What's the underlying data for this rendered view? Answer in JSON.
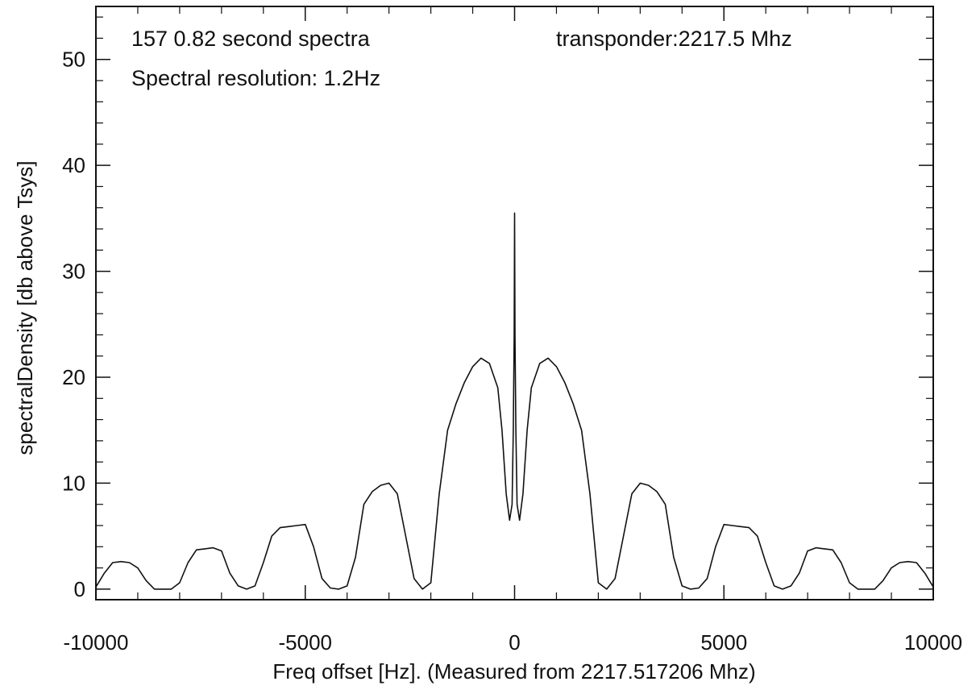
{
  "chart_data": {
    "type": "line",
    "xlabel": "Freq offset [Hz]. (Measured from 2217.517206 Mhz)",
    "ylabel": "spectralDensity [db above Tsys]",
    "xlim": [
      -10000,
      10000
    ],
    "ylim": [
      -1,
      55
    ],
    "xticks": [
      -10000,
      -5000,
      0,
      5000,
      10000
    ],
    "xtick_labels": [
      "-10000",
      "-5000",
      "0",
      "5000",
      "10000"
    ],
    "yticks": [
      0,
      10,
      20,
      30,
      40,
      50
    ],
    "ytick_labels": [
      "0",
      "10",
      "20",
      "30",
      "40",
      "50"
    ],
    "grid": false,
    "legend": "none",
    "annotations": [
      {
        "text": "157 0.82 second spectra"
      },
      {
        "text": "Spectral resolution: 1.2Hz"
      },
      {
        "text": "transponder:2217.5 Mhz"
      }
    ],
    "series": [
      {
        "color": "#111111",
        "x": [
          -10000,
          -9800,
          -9600,
          -9400,
          -9200,
          -9000,
          -8800,
          -8600,
          -8400,
          -8200,
          -8000,
          -7800,
          -7600,
          -7400,
          -7200,
          -7000,
          -6800,
          -6600,
          -6400,
          -6200,
          -6000,
          -5800,
          -5600,
          -5400,
          -5200,
          -5000,
          -4800,
          -4600,
          -4400,
          -4200,
          -4000,
          -3800,
          -3600,
          -3400,
          -3200,
          -3000,
          -2800,
          -2600,
          -2400,
          -2200,
          -2000,
          -1800,
          -1600,
          -1400,
          -1200,
          -1000,
          -800,
          -600,
          -400,
          -300,
          -200,
          -120,
          -60,
          -30,
          -10,
          0,
          10,
          30,
          60,
          120,
          200,
          300,
          400,
          600,
          800,
          1000,
          1200,
          1400,
          1600,
          1800,
          2000,
          2200,
          2400,
          2600,
          2800,
          3000,
          3200,
          3400,
          3600,
          3800,
          4000,
          4200,
          4400,
          4600,
          4800,
          5000,
          5200,
          5400,
          5600,
          5800,
          6000,
          6200,
          6400,
          6600,
          6800,
          7000,
          7200,
          7400,
          7600,
          7800,
          8000,
          8200,
          8400,
          8600,
          8800,
          9000,
          9200,
          9400,
          9600,
          9800,
          10000
        ],
        "y": [
          0.2,
          1.5,
          2.5,
          2.6,
          2.5,
          2.0,
          0.8,
          0.0,
          0.0,
          0.0,
          0.6,
          2.5,
          3.7,
          3.8,
          3.9,
          3.6,
          1.5,
          0.3,
          0.0,
          0.3,
          2.5,
          5.0,
          5.8,
          5.9,
          6.0,
          6.1,
          4.0,
          1.0,
          0.1,
          0.0,
          0.3,
          3.0,
          8.0,
          9.2,
          9.8,
          10.0,
          9.0,
          5.0,
          1.0,
          0.0,
          0.6,
          9.0,
          15.0,
          17.5,
          19.5,
          21.0,
          21.8,
          21.3,
          19.0,
          15.0,
          9.0,
          6.5,
          8.0,
          15.0,
          24.0,
          35.5,
          24.0,
          15.0,
          8.0,
          6.5,
          9.0,
          15.0,
          19.0,
          21.3,
          21.8,
          21.0,
          19.5,
          17.5,
          15.0,
          9.0,
          0.6,
          0.0,
          1.0,
          5.0,
          9.0,
          10.0,
          9.8,
          9.2,
          8.0,
          3.0,
          0.3,
          0.0,
          0.1,
          1.0,
          4.0,
          6.1,
          6.0,
          5.9,
          5.8,
          5.0,
          2.5,
          0.3,
          0.0,
          0.3,
          1.5,
          3.6,
          3.9,
          3.8,
          3.7,
          2.5,
          0.6,
          0.0,
          0.0,
          0.0,
          0.8,
          2.0,
          2.5,
          2.6,
          2.5,
          1.5,
          0.2
        ]
      }
    ]
  }
}
